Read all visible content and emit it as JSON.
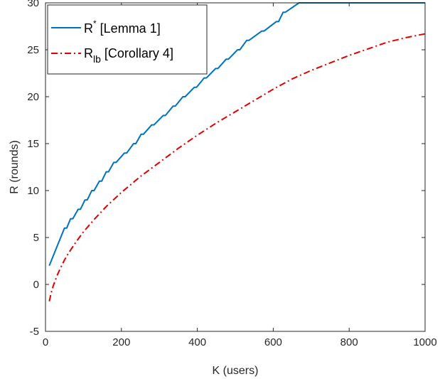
{
  "chart_data": {
    "type": "line",
    "xlabel": "K (users)",
    "ylabel": "R (rounds)",
    "xlim": [
      0,
      1000
    ],
    "ylim": [
      -5,
      30
    ],
    "xticks": [
      0,
      200,
      400,
      600,
      800,
      1000
    ],
    "yticks": [
      -5,
      0,
      5,
      10,
      15,
      20,
      25,
      30
    ],
    "grid": false,
    "legend_position": "top-left",
    "series": [
      {
        "name": "R* [Lemma 1]",
        "legend_main": "R",
        "legend_mark": "*",
        "legend_suffix": " [Lemma 1]",
        "color": "#0072BD",
        "style": "solid",
        "x": [
          10,
          50,
          56,
          66,
          72,
          86,
          92,
          104,
          110,
          122,
          128,
          142,
          148,
          160,
          166,
          180,
          186,
          208,
          214,
          232,
          238,
          252,
          258,
          280,
          286,
          310,
          316,
          336,
          342,
          362,
          368,
          392,
          398,
          418,
          424,
          448,
          454,
          476,
          482,
          506,
          512,
          530,
          536,
          570,
          576,
          608,
          614,
          626,
          632,
          668,
          674,
          714,
          720,
          742,
          748,
          788,
          794,
          834,
          840,
          852,
          858,
          902,
          908,
          960,
          966,
          1000
        ],
        "y": [
          2,
          6,
          6,
          7,
          7,
          8,
          8,
          9,
          9,
          10,
          10,
          11,
          11,
          12,
          12,
          13,
          13,
          14,
          14,
          15,
          15,
          16,
          16,
          17,
          17,
          18,
          18,
          19,
          19,
          20,
          20,
          21,
          21,
          22,
          22,
          23,
          23,
          24,
          24,
          25,
          25,
          26,
          26,
          27,
          27,
          28,
          28,
          29,
          29,
          30,
          30,
          30,
          30,
          30,
          30,
          30,
          30,
          30,
          30,
          30,
          30,
          30,
          30,
          30,
          30,
          30
        ]
      },
      {
        "name": "R_lb [Corollary 4]",
        "legend_main": "R",
        "legend_sub": "lb",
        "legend_suffix": " [Corollary 4]",
        "color": "#E00000",
        "style": "dash-dot",
        "x": [
          10,
          15,
          20,
          30,
          40,
          50,
          60,
          80,
          100,
          130,
          160,
          200,
          250,
          300,
          350,
          400,
          450,
          500,
          550,
          600,
          650,
          700,
          750,
          800,
          850,
          900,
          950,
          1000
        ],
        "y": [
          -1.8,
          -0.9,
          -0.2,
          0.9,
          1.8,
          2.6,
          3.3,
          4.5,
          5.6,
          7.0,
          8.3,
          9.8,
          11.5,
          13.0,
          14.5,
          15.9,
          17.2,
          18.4,
          19.6,
          20.8,
          21.9,
          22.8,
          23.6,
          24.4,
          25.1,
          25.8,
          26.3,
          26.7
        ]
      }
    ]
  }
}
